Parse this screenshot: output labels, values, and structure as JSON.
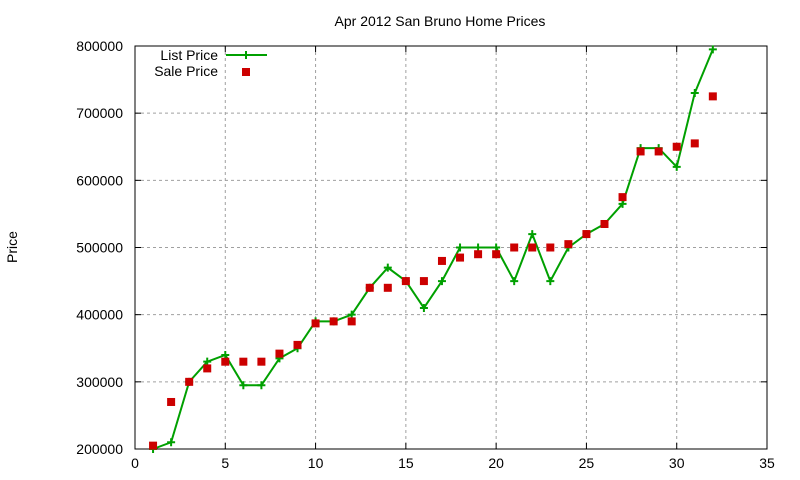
{
  "chart_data": {
    "type": "line",
    "title": "Apr 2012 San Bruno Home Prices",
    "xlabel": "",
    "ylabel": "Price",
    "xlim": [
      0,
      35
    ],
    "ylim": [
      200000,
      800000
    ],
    "xticks": [
      0,
      5,
      10,
      15,
      20,
      25,
      30,
      35
    ],
    "yticks": [
      200000,
      300000,
      400000,
      500000,
      600000,
      700000,
      800000
    ],
    "grid": true,
    "legend_position": "top-left",
    "x": [
      1,
      2,
      3,
      4,
      5,
      6,
      7,
      8,
      9,
      10,
      11,
      12,
      13,
      14,
      15,
      16,
      17,
      18,
      19,
      20,
      21,
      22,
      23,
      24,
      25,
      26,
      27,
      28,
      29,
      30,
      31,
      32
    ],
    "series": [
      {
        "name": "List Price",
        "style": "line+cross",
        "color": "#00a000",
        "values": [
          200000,
          210000,
          300000,
          330000,
          340000,
          295000,
          295000,
          335000,
          350000,
          390000,
          390000,
          400000,
          440000,
          470000,
          450000,
          410000,
          450000,
          500000,
          500000,
          500000,
          450000,
          520000,
          450000,
          500000,
          520000,
          535000,
          565000,
          648000,
          648000,
          620000,
          730000,
          795000
        ]
      },
      {
        "name": "Sale Price",
        "style": "square-markers",
        "color": "#cc0000",
        "values": [
          205000,
          270000,
          300000,
          320000,
          330000,
          330000,
          330000,
          342000,
          355000,
          387000,
          390000,
          390000,
          440000,
          440000,
          450000,
          450000,
          480000,
          485000,
          490000,
          490000,
          500000,
          500000,
          500000,
          505000,
          520000,
          535000,
          575000,
          643000,
          643000,
          650000,
          655000,
          725000
        ]
      }
    ]
  }
}
